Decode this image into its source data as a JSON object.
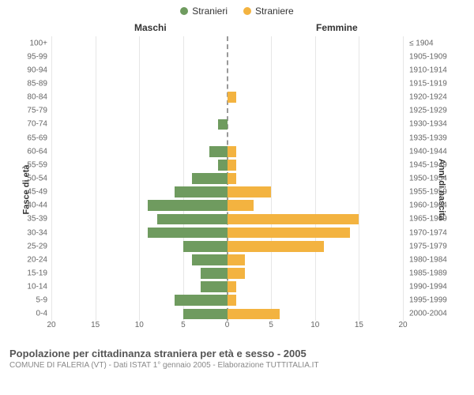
{
  "legend": {
    "male_label": "Stranieri",
    "female_label": "Straniere"
  },
  "top_labels": {
    "male": "Maschi",
    "female": "Femmine"
  },
  "y_axis_left_title": "Fasce di età",
  "y_axis_right_title": "Anni di nascita",
  "colors": {
    "male": "#6f9b5f",
    "female": "#f3b340",
    "grid": "#e6e6e6",
    "center_line": "#999999",
    "background": "#ffffff"
  },
  "x_axis": {
    "max": 20,
    "ticks": [
      20,
      15,
      10,
      5,
      0,
      5,
      10,
      15,
      20
    ]
  },
  "categories": [
    {
      "age": "100+",
      "birth": "≤ 1904",
      "m": 0,
      "f": 0
    },
    {
      "age": "95-99",
      "birth": "1905-1909",
      "m": 0,
      "f": 0
    },
    {
      "age": "90-94",
      "birth": "1910-1914",
      "m": 0,
      "f": 0
    },
    {
      "age": "85-89",
      "birth": "1915-1919",
      "m": 0,
      "f": 0
    },
    {
      "age": "80-84",
      "birth": "1920-1924",
      "m": 0,
      "f": 1
    },
    {
      "age": "75-79",
      "birth": "1925-1929",
      "m": 0,
      "f": 0
    },
    {
      "age": "70-74",
      "birth": "1930-1934",
      "m": 1,
      "f": 0
    },
    {
      "age": "65-69",
      "birth": "1935-1939",
      "m": 0,
      "f": 0
    },
    {
      "age": "60-64",
      "birth": "1940-1944",
      "m": 2,
      "f": 1
    },
    {
      "age": "55-59",
      "birth": "1945-1949",
      "m": 1,
      "f": 1
    },
    {
      "age": "50-54",
      "birth": "1950-1954",
      "m": 4,
      "f": 1
    },
    {
      "age": "45-49",
      "birth": "1955-1959",
      "m": 6,
      "f": 5
    },
    {
      "age": "40-44",
      "birth": "1960-1964",
      "m": 9,
      "f": 3
    },
    {
      "age": "35-39",
      "birth": "1965-1969",
      "m": 8,
      "f": 15
    },
    {
      "age": "30-34",
      "birth": "1970-1974",
      "m": 9,
      "f": 14
    },
    {
      "age": "25-29",
      "birth": "1975-1979",
      "m": 5,
      "f": 11
    },
    {
      "age": "20-24",
      "birth": "1980-1984",
      "m": 4,
      "f": 2
    },
    {
      "age": "15-19",
      "birth": "1985-1989",
      "m": 3,
      "f": 2
    },
    {
      "age": "10-14",
      "birth": "1990-1994",
      "m": 3,
      "f": 1
    },
    {
      "age": "5-9",
      "birth": "1995-1999",
      "m": 6,
      "f": 1
    },
    {
      "age": "0-4",
      "birth": "2000-2004",
      "m": 5,
      "f": 6
    }
  ],
  "footer": {
    "title": "Popolazione per cittadinanza straniera per età e sesso - 2005",
    "subtitle": "COMUNE DI FALERIA (VT) - Dati ISTAT 1° gennaio 2005 - Elaborazione TUTTITALIA.IT"
  },
  "fontsize": {
    "legend": 12,
    "labels": 10,
    "axis_title": 11,
    "footer_title": 13,
    "footer_sub": 10
  }
}
